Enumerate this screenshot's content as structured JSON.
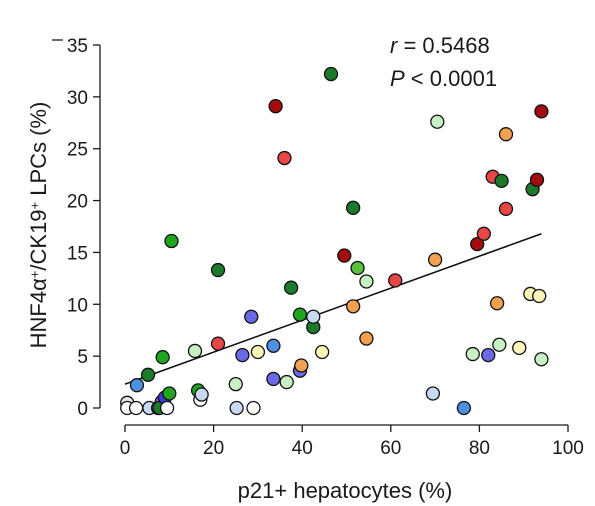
{
  "chart_data": {
    "type": "scatter",
    "xlabel": "p21+ hepatocytes (%)",
    "ylabel_parts": [
      "HNF4α",
      "+",
      "/CK19",
      "+",
      " LPCs (%)"
    ],
    "xlim": [
      0,
      100
    ],
    "ylim": [
      0,
      35
    ],
    "x_ticks": [
      0,
      20,
      40,
      60,
      80,
      100
    ],
    "y_ticks": [
      0,
      5,
      10,
      15,
      20,
      25,
      30,
      35
    ],
    "grid": false,
    "annotations": {
      "r_symbol": "r",
      "r_value": " = 0.5468",
      "p_symbol": "P",
      "p_value": " < 0.0001"
    },
    "regression_line": {
      "x": [
        0,
        94
      ],
      "y": [
        2.3,
        16.8
      ]
    },
    "points": [
      {
        "x": 0.5,
        "y": 0.5,
        "color": "#e6e6e6"
      },
      {
        "x": 0.5,
        "y": 0,
        "color": "#ffffff"
      },
      {
        "x": 2.5,
        "y": 0,
        "color": "#ffffff"
      },
      {
        "x": 2.7,
        "y": 2.2,
        "color": "#4f8fe0"
      },
      {
        "x": 5.2,
        "y": 3.2,
        "color": "#1d7a2d"
      },
      {
        "x": 5.5,
        "y": 0,
        "color": "#c8daf2"
      },
      {
        "x": 7.5,
        "y": 0,
        "color": "#c8daf2"
      },
      {
        "x": 7.5,
        "y": 0,
        "color": "#ffffff"
      },
      {
        "x": 8.3,
        "y": 0.6,
        "color": "#6a6ae6"
      },
      {
        "x": 8.5,
        "y": 4.9,
        "color": "#1fa51f"
      },
      {
        "x": 7.8,
        "y": 0,
        "color": "#1d7a2d"
      },
      {
        "x": 9.0,
        "y": 1.0,
        "color": "#3a3ad6"
      },
      {
        "x": 9.5,
        "y": 0,
        "color": "#ffffff"
      },
      {
        "x": 10.0,
        "y": 1.4,
        "color": "#1fa51f"
      },
      {
        "x": 10.5,
        "y": 16.1,
        "color": "#1fa51f"
      },
      {
        "x": 15.8,
        "y": 5.5,
        "color": "#c9f0c4"
      },
      {
        "x": 16.5,
        "y": 1.7,
        "color": "#1fa51f"
      },
      {
        "x": 17.0,
        "y": 0.8,
        "color": "#ffffff"
      },
      {
        "x": 17.3,
        "y": 1.3,
        "color": "#c8daf2"
      },
      {
        "x": 21.0,
        "y": 13.3,
        "color": "#1d7a2d"
      },
      {
        "x": 21.0,
        "y": 6.2,
        "color": "#e84545"
      },
      {
        "x": 25.0,
        "y": 2.3,
        "color": "#c9f0c4"
      },
      {
        "x": 25.2,
        "y": 0,
        "color": "#c8daf2"
      },
      {
        "x": 26.5,
        "y": 5.1,
        "color": "#6a6ae6"
      },
      {
        "x": 28.5,
        "y": 8.8,
        "color": "#6a6ae6"
      },
      {
        "x": 29.0,
        "y": 0,
        "color": "#ffffff"
      },
      {
        "x": 30.0,
        "y": 5.4,
        "color": "#fdf5b8"
      },
      {
        "x": 33.5,
        "y": 6.0,
        "color": "#4f8fe0"
      },
      {
        "x": 33.5,
        "y": 2.8,
        "color": "#6a6ae6"
      },
      {
        "x": 34.0,
        "y": 29.1,
        "color": "#a30d0d"
      },
      {
        "x": 36.0,
        "y": 24.1,
        "color": "#e84545"
      },
      {
        "x": 36.5,
        "y": 2.5,
        "color": "#c9f0c4"
      },
      {
        "x": 37.5,
        "y": 11.6,
        "color": "#1d7a2d"
      },
      {
        "x": 39.5,
        "y": 9.0,
        "color": "#1fa51f"
      },
      {
        "x": 39.5,
        "y": 3.6,
        "color": "#6a6ae6"
      },
      {
        "x": 39.8,
        "y": 4.1,
        "color": "#f3a150"
      },
      {
        "x": 42.5,
        "y": 7.8,
        "color": "#1d7a2d"
      },
      {
        "x": 42.5,
        "y": 8.8,
        "color": "#c8daf2"
      },
      {
        "x": 44.5,
        "y": 5.4,
        "color": "#fdf5b8"
      },
      {
        "x": 46.5,
        "y": 32.2,
        "color": "#1d7a2d"
      },
      {
        "x": 49.5,
        "y": 14.7,
        "color": "#a30d0d"
      },
      {
        "x": 51.5,
        "y": 19.3,
        "color": "#1d7a2d"
      },
      {
        "x": 51.5,
        "y": 9.8,
        "color": "#f3a150"
      },
      {
        "x": 52.5,
        "y": 13.5,
        "color": "#5abf3a"
      },
      {
        "x": 54.5,
        "y": 12.2,
        "color": "#c9f0c4"
      },
      {
        "x": 54.5,
        "y": 6.7,
        "color": "#f3a150"
      },
      {
        "x": 61.0,
        "y": 12.3,
        "color": "#e84545"
      },
      {
        "x": 69.5,
        "y": 1.4,
        "color": "#c8daf2"
      },
      {
        "x": 70.0,
        "y": 14.3,
        "color": "#f3a150"
      },
      {
        "x": 70.5,
        "y": 27.6,
        "color": "#c9f0c4"
      },
      {
        "x": 76.5,
        "y": 0,
        "color": "#4f8fe0"
      },
      {
        "x": 78.5,
        "y": 5.2,
        "color": "#c9f0c4"
      },
      {
        "x": 79.5,
        "y": 15.8,
        "color": "#a30d0d"
      },
      {
        "x": 81.0,
        "y": 16.8,
        "color": "#e84545"
      },
      {
        "x": 82.0,
        "y": 5.1,
        "color": "#6a6ae6"
      },
      {
        "x": 83.0,
        "y": 22.3,
        "color": "#e84545"
      },
      {
        "x": 84.0,
        "y": 10.1,
        "color": "#f3a150"
      },
      {
        "x": 84.5,
        "y": 6.1,
        "color": "#c9f0c4"
      },
      {
        "x": 85.0,
        "y": 21.9,
        "color": "#1d7a2d"
      },
      {
        "x": 86.0,
        "y": 26.4,
        "color": "#f3a150"
      },
      {
        "x": 86.0,
        "y": 19.2,
        "color": "#e84545"
      },
      {
        "x": 89.0,
        "y": 5.8,
        "color": "#fdf5b8"
      },
      {
        "x": 91.5,
        "y": 11.0,
        "color": "#fdf5b8"
      },
      {
        "x": 92.0,
        "y": 21.1,
        "color": "#1d7a2d"
      },
      {
        "x": 93.0,
        "y": 22.0,
        "color": "#a30d0d"
      },
      {
        "x": 93.5,
        "y": 10.8,
        "color": "#fdf5b8"
      },
      {
        "x": 94.0,
        "y": 28.6,
        "color": "#a30d0d"
      },
      {
        "x": 94.0,
        "y": 4.7,
        "color": "#c9f0c4"
      }
    ]
  }
}
